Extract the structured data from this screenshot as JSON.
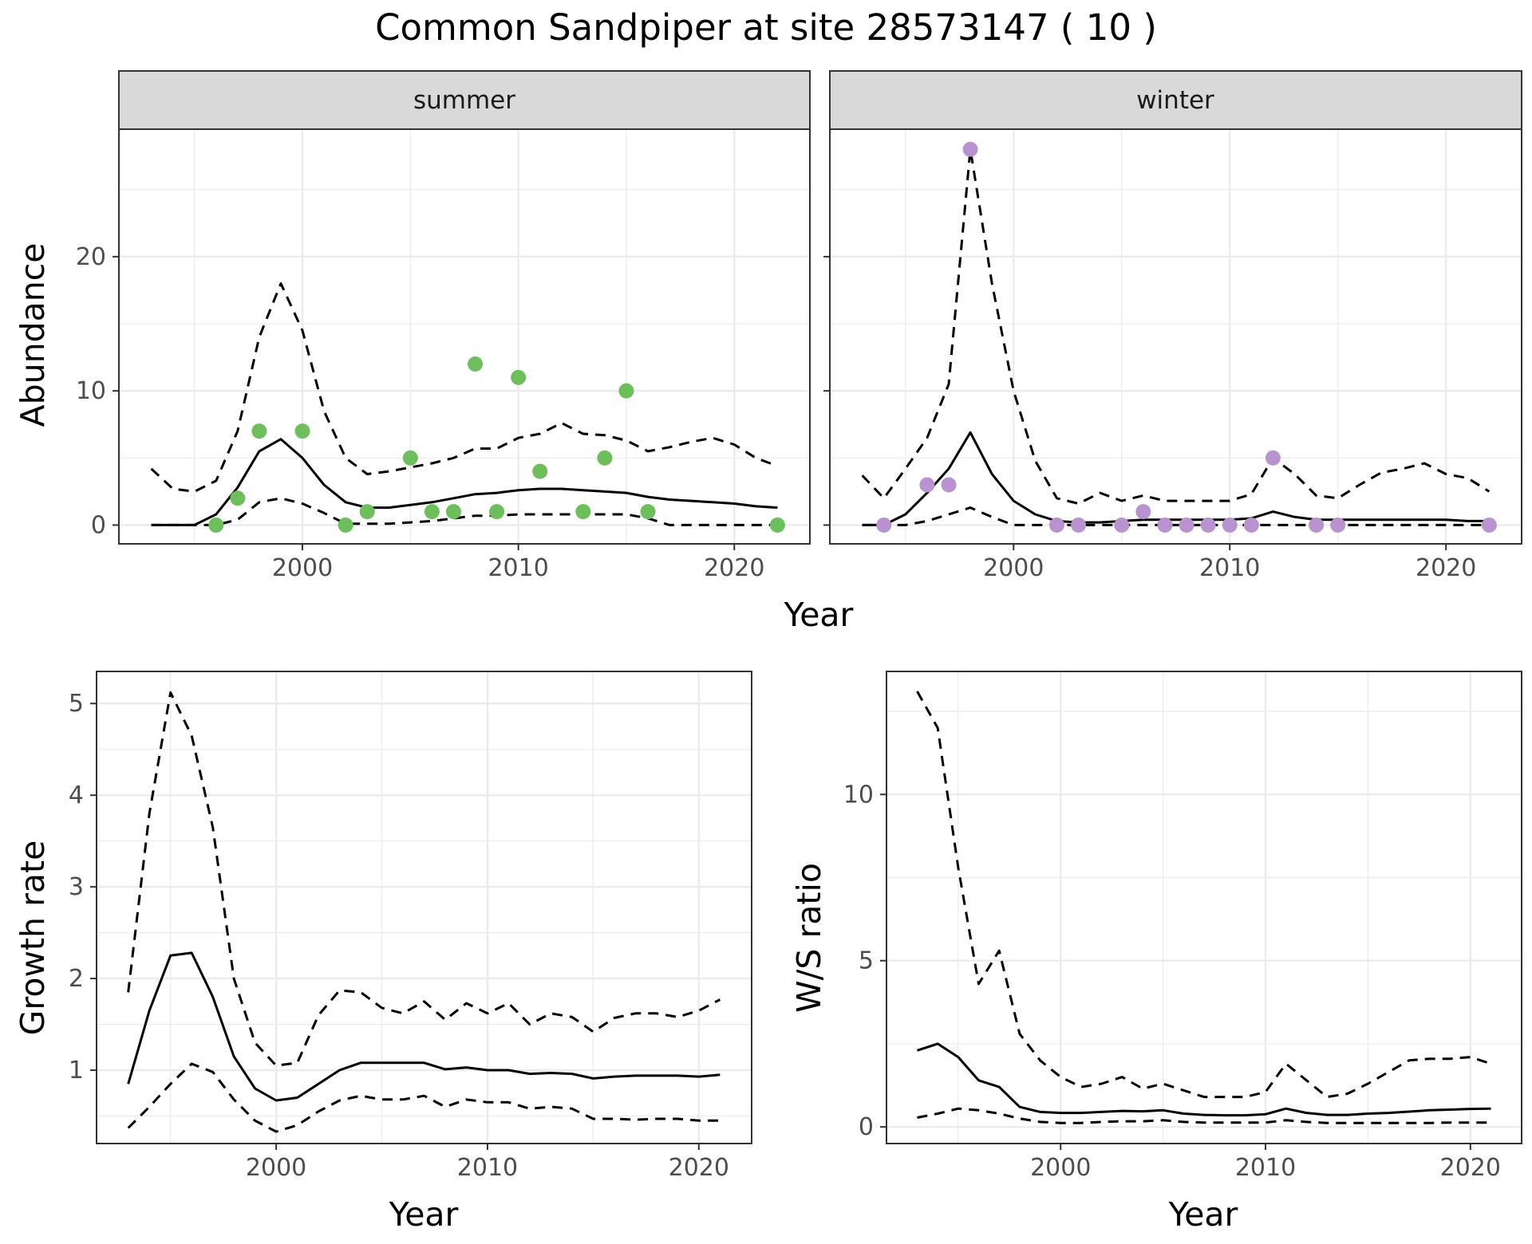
{
  "title": "Common Sandpiper at site 28573147 ( 10 )",
  "colors": {
    "summer_points": "#6cbf5a",
    "winter_points": "#b993cf",
    "line": "#000000",
    "strip_bg": "#d9d9d9",
    "grid": "#ebebeb"
  },
  "chart_data": [
    {
      "id": "summer",
      "type": "line",
      "facet_label": "summer",
      "xlabel": "Year",
      "ylabel": "Abundance",
      "xlim": [
        1991.5,
        2023.5
      ],
      "ylim": [
        -1.4,
        29.5
      ],
      "xticks": [
        2000,
        2010,
        2020
      ],
      "yticks": [
        0,
        10,
        20
      ],
      "grid": true,
      "series": [
        {
          "role": "mean",
          "style": "solid",
          "x": [
            1993,
            1994,
            1995,
            1996,
            1997,
            1998,
            1999,
            2000,
            2001,
            2002,
            2003,
            2004,
            2005,
            2006,
            2007,
            2008,
            2009,
            2010,
            2011,
            2012,
            2013,
            2014,
            2015,
            2016,
            2017,
            2018,
            2019,
            2020,
            2021,
            2022
          ],
          "y": [
            0,
            0,
            0,
            0.8,
            2.8,
            5.5,
            6.4,
            5,
            3,
            1.7,
            1.3,
            1.3,
            1.5,
            1.7,
            2,
            2.3,
            2.4,
            2.6,
            2.7,
            2.7,
            2.6,
            2.5,
            2.4,
            2.1,
            1.9,
            1.8,
            1.7,
            1.6,
            1.4,
            1.3
          ]
        },
        {
          "role": "upper",
          "style": "dashed",
          "x": [
            1993,
            1994,
            1995,
            1996,
            1997,
            1998,
            1999,
            2000,
            2001,
            2002,
            2003,
            2004,
            2005,
            2006,
            2007,
            2008,
            2009,
            2010,
            2011,
            2012,
            2013,
            2014,
            2015,
            2016,
            2017,
            2018,
            2019,
            2020,
            2021,
            2022
          ],
          "y": [
            4.2,
            2.7,
            2.5,
            3.3,
            7,
            14,
            18,
            14.5,
            8.5,
            5,
            3.8,
            4,
            4.3,
            4.6,
            5,
            5.7,
            5.7,
            6.5,
            6.8,
            7.6,
            6.8,
            6.7,
            6.3,
            5.5,
            5.8,
            6.2,
            6.5,
            6,
            5,
            4.4
          ]
        },
        {
          "role": "lower",
          "style": "dashed",
          "x": [
            1993,
            1994,
            1995,
            1996,
            1997,
            1998,
            1999,
            2000,
            2001,
            2002,
            2003,
            2004,
            2005,
            2006,
            2007,
            2008,
            2009,
            2010,
            2011,
            2012,
            2013,
            2014,
            2015,
            2016,
            2017,
            2018,
            2019,
            2020,
            2021,
            2022
          ],
          "y": [
            0,
            0,
            0,
            0,
            0.4,
            1.7,
            2,
            1.6,
            0.9,
            0.1,
            0.1,
            0.1,
            0.2,
            0.3,
            0.5,
            0.7,
            0.7,
            0.8,
            0.8,
            0.8,
            0.8,
            0.8,
            0.8,
            0.5,
            0,
            0,
            0,
            0,
            0,
            0
          ]
        }
      ],
      "points": {
        "x": [
          1996,
          1997,
          1998,
          2000,
          2002,
          2003,
          2005,
          2006,
          2007,
          2008,
          2009,
          2010,
          2011,
          2013,
          2014,
          2015,
          2016,
          2022
        ],
        "y": [
          0,
          2,
          7,
          7,
          0,
          1,
          5,
          1,
          1,
          12,
          1,
          11,
          4,
          1,
          5,
          10,
          1,
          0
        ]
      }
    },
    {
      "id": "winter",
      "type": "line",
      "facet_label": "winter",
      "xlabel": "Year",
      "ylabel": "Abundance",
      "xlim": [
        1991.5,
        2023.5
      ],
      "ylim": [
        -1.4,
        29.5
      ],
      "xticks": [
        2000,
        2010,
        2020
      ],
      "yticks": [
        0,
        10,
        20
      ],
      "grid": true,
      "series": [
        {
          "role": "mean",
          "style": "solid",
          "x": [
            1993,
            1994,
            1995,
            1996,
            1997,
            1998,
            1999,
            2000,
            2001,
            2002,
            2003,
            2004,
            2005,
            2006,
            2007,
            2008,
            2009,
            2010,
            2011,
            2012,
            2013,
            2014,
            2015,
            2016,
            2017,
            2018,
            2019,
            2020,
            2021,
            2022
          ],
          "y": [
            0,
            0,
            0.8,
            2.4,
            4.2,
            6.9,
            3.8,
            1.8,
            0.8,
            0.3,
            0.2,
            0.2,
            0.3,
            0.4,
            0.4,
            0.4,
            0.4,
            0.4,
            0.5,
            1,
            0.6,
            0.4,
            0.4,
            0.4,
            0.4,
            0.4,
            0.4,
            0.4,
            0.3,
            0.3
          ]
        },
        {
          "role": "upper",
          "style": "dashed",
          "x": [
            1993,
            1994,
            1995,
            1996,
            1997,
            1998,
            1999,
            2000,
            2001,
            2002,
            2003,
            2004,
            2005,
            2006,
            2007,
            2008,
            2009,
            2010,
            2011,
            2012,
            2013,
            2014,
            2015,
            2016,
            2017,
            2018,
            2019,
            2020,
            2021,
            2022
          ],
          "y": [
            3.7,
            2,
            4.2,
            6.5,
            10.5,
            28,
            18,
            10,
            4.8,
            2,
            1.6,
            2.4,
            1.8,
            2.2,
            1.8,
            1.8,
            1.8,
            1.8,
            2.3,
            5,
            3.8,
            2.2,
            2,
            3,
            3.9,
            4.2,
            4.6,
            3.8,
            3.5,
            2.5
          ]
        },
        {
          "role": "lower",
          "style": "dashed",
          "x": [
            1993,
            1994,
            1995,
            1996,
            1997,
            1998,
            1999,
            2000,
            2001,
            2002,
            2003,
            2004,
            2005,
            2006,
            2007,
            2008,
            2009,
            2010,
            2011,
            2012,
            2013,
            2014,
            2015,
            2016,
            2017,
            2018,
            2019,
            2020,
            2021,
            2022
          ],
          "y": [
            0,
            0,
            0,
            0.3,
            0.8,
            1.3,
            0.6,
            0,
            0,
            0,
            0,
            0,
            0,
            0,
            0,
            0,
            0,
            0,
            0,
            0,
            0,
            0,
            0,
            0,
            0,
            0,
            0,
            0,
            0,
            0
          ]
        }
      ],
      "points": {
        "x": [
          1994,
          1996,
          1997,
          1998,
          2002,
          2003,
          2005,
          2006,
          2007,
          2008,
          2009,
          2010,
          2011,
          2012,
          2014,
          2015,
          2022
        ],
        "y": [
          0,
          3,
          3,
          28,
          0,
          0,
          0,
          1,
          0,
          0,
          0,
          0,
          0,
          5,
          0,
          0,
          0
        ]
      }
    },
    {
      "id": "growth",
      "type": "line",
      "xlabel": "Year",
      "ylabel": "Growth rate",
      "xlim": [
        1991.5,
        2022.5
      ],
      "ylim": [
        0.2,
        5.35
      ],
      "xticks": [
        2000,
        2010,
        2020
      ],
      "yticks": [
        1,
        2,
        3,
        4,
        5
      ],
      "grid": true,
      "series": [
        {
          "role": "mean",
          "style": "solid",
          "x": [
            1993,
            1994,
            1995,
            1996,
            1997,
            1998,
            1999,
            2000,
            2001,
            2002,
            2003,
            2004,
            2005,
            2006,
            2007,
            2008,
            2009,
            2010,
            2011,
            2012,
            2013,
            2014,
            2015,
            2016,
            2017,
            2018,
            2019,
            2020,
            2021
          ],
          "y": [
            0.85,
            1.65,
            2.25,
            2.28,
            1.8,
            1.15,
            0.8,
            0.67,
            0.7,
            0.85,
            1,
            1.08,
            1.08,
            1.08,
            1.08,
            1.01,
            1.03,
            1,
            1,
            0.96,
            0.97,
            0.96,
            0.91,
            0.93,
            0.94,
            0.94,
            0.94,
            0.93,
            0.95
          ]
        },
        {
          "role": "upper",
          "style": "dashed",
          "x": [
            1993,
            1994,
            1995,
            1996,
            1997,
            1998,
            1999,
            2000,
            2001,
            2002,
            2003,
            2004,
            2005,
            2006,
            2007,
            2008,
            2009,
            2010,
            2011,
            2012,
            2013,
            2014,
            2015,
            2016,
            2017,
            2018,
            2019,
            2020,
            2021
          ],
          "y": [
            1.85,
            3.8,
            5.12,
            4.65,
            3.65,
            2,
            1.3,
            1.05,
            1.08,
            1.6,
            1.87,
            1.85,
            1.68,
            1.62,
            1.75,
            1.55,
            1.73,
            1.62,
            1.73,
            1.5,
            1.62,
            1.58,
            1.42,
            1.57,
            1.62,
            1.62,
            1.58,
            1.65,
            1.77
          ]
        },
        {
          "role": "lower",
          "style": "dashed",
          "x": [
            1993,
            1994,
            1995,
            1996,
            1997,
            1998,
            1999,
            2000,
            2001,
            2002,
            2003,
            2004,
            2005,
            2006,
            2007,
            2008,
            2009,
            2010,
            2011,
            2012,
            2013,
            2014,
            2015,
            2016,
            2017,
            2018,
            2019,
            2020,
            2021
          ],
          "y": [
            0.37,
            0.6,
            0.85,
            1.07,
            0.98,
            0.68,
            0.45,
            0.33,
            0.4,
            0.55,
            0.67,
            0.72,
            0.68,
            0.68,
            0.72,
            0.6,
            0.68,
            0.65,
            0.65,
            0.58,
            0.6,
            0.58,
            0.47,
            0.47,
            0.46,
            0.47,
            0.47,
            0.45,
            0.45
          ]
        }
      ]
    },
    {
      "id": "ratio",
      "type": "line",
      "xlabel": "Year",
      "ylabel": "W/S ratio",
      "xlim": [
        1991.5,
        2022.5
      ],
      "ylim": [
        -0.5,
        13.7
      ],
      "xticks": [
        2000,
        2010,
        2020
      ],
      "yticks": [
        0,
        5,
        10
      ],
      "grid": true,
      "series": [
        {
          "role": "mean",
          "style": "solid",
          "x": [
            1993,
            1994,
            1995,
            1996,
            1997,
            1998,
            1999,
            2000,
            2001,
            2002,
            2003,
            2004,
            2005,
            2006,
            2007,
            2008,
            2009,
            2010,
            2011,
            2012,
            2013,
            2014,
            2015,
            2016,
            2017,
            2018,
            2019,
            2020,
            2021
          ],
          "y": [
            2.3,
            2.5,
            2.1,
            1.4,
            1.2,
            0.6,
            0.45,
            0.42,
            0.42,
            0.45,
            0.48,
            0.47,
            0.5,
            0.4,
            0.36,
            0.35,
            0.35,
            0.38,
            0.55,
            0.42,
            0.36,
            0.36,
            0.4,
            0.42,
            0.46,
            0.5,
            0.52,
            0.54,
            0.55
          ]
        },
        {
          "role": "upper",
          "style": "dashed",
          "x": [
            1993,
            1994,
            1995,
            1996,
            1997,
            1998,
            1999,
            2000,
            2001,
            2002,
            2003,
            2004,
            2005,
            2006,
            2007,
            2008,
            2009,
            2010,
            2011,
            2012,
            2013,
            2014,
            2015,
            2016,
            2017,
            2018,
            2019,
            2020,
            2021
          ],
          "y": [
            13.1,
            12,
            7.8,
            4.3,
            5.3,
            2.8,
            2,
            1.5,
            1.2,
            1.3,
            1.5,
            1.15,
            1.3,
            1.1,
            0.9,
            0.9,
            0.9,
            1.05,
            1.9,
            1.4,
            0.9,
            1,
            1.3,
            1.65,
            2,
            2.05,
            2.05,
            2.1,
            1.9
          ]
        },
        {
          "role": "lower",
          "style": "dashed",
          "x": [
            1993,
            1994,
            1995,
            1996,
            1997,
            1998,
            1999,
            2000,
            2001,
            2002,
            2003,
            2004,
            2005,
            2006,
            2007,
            2008,
            2009,
            2010,
            2011,
            2012,
            2013,
            2014,
            2015,
            2016,
            2017,
            2018,
            2019,
            2020,
            2021
          ],
          "y": [
            0.28,
            0.4,
            0.55,
            0.5,
            0.4,
            0.25,
            0.15,
            0.12,
            0.12,
            0.15,
            0.17,
            0.17,
            0.2,
            0.15,
            0.13,
            0.13,
            0.13,
            0.13,
            0.2,
            0.15,
            0.12,
            0.12,
            0.12,
            0.12,
            0.12,
            0.12,
            0.13,
            0.13,
            0.13
          ]
        }
      ]
    }
  ]
}
